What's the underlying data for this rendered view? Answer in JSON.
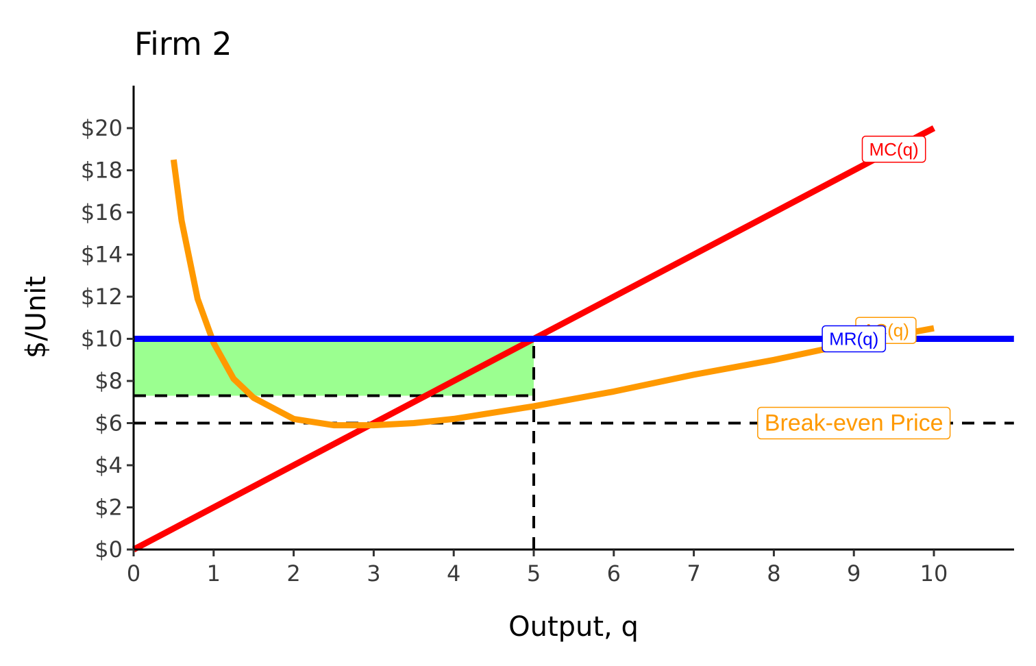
{
  "chart_data": {
    "type": "line",
    "title": "Firm 2",
    "xlabel": "Output, q",
    "ylabel": "$/Unit",
    "xlim": [
      0,
      11
    ],
    "ylim": [
      0,
      22
    ],
    "x_ticks": [
      0,
      1,
      2,
      3,
      4,
      5,
      6,
      7,
      8,
      9,
      10
    ],
    "x_tick_labels": [
      "0",
      "1",
      "2",
      "3",
      "4",
      "5",
      "6",
      "7",
      "8",
      "9",
      "10"
    ],
    "y_ticks": [
      0,
      2,
      4,
      6,
      8,
      10,
      12,
      14,
      16,
      18,
      20
    ],
    "y_tick_labels": [
      "$0",
      "$2",
      "$4",
      "$6",
      "$8",
      "$10",
      "$12",
      "$14",
      "$16",
      "$18",
      "$20"
    ],
    "grid": false,
    "series": [
      {
        "name": "MC(q)",
        "color": "#ff0000",
        "x": [
          0,
          10
        ],
        "y": [
          0,
          20
        ]
      },
      {
        "name": "AC(q)",
        "color": "#ff9900",
        "x": [
          0.5,
          0.6,
          0.8,
          1,
          1.25,
          1.5,
          2,
          2.5,
          3,
          3.5,
          4,
          5,
          6,
          7,
          8,
          9,
          10
        ],
        "y": [
          18.5,
          15.6,
          11.9,
          9.8,
          8.1,
          7.2,
          6.2,
          5.9,
          5.9,
          6.0,
          6.2,
          6.8,
          7.5,
          8.3,
          9.0,
          9.8,
          10.5
        ]
      },
      {
        "name": "MR(q)",
        "color": "#0000ff",
        "x": [
          0,
          11
        ],
        "y": [
          10,
          10
        ]
      }
    ],
    "annotations": [
      {
        "text": "MC(q)",
        "x": 9.5,
        "y": 19,
        "color": "#ff0000"
      },
      {
        "text": "AC(q)",
        "x": 9.4,
        "y": 10.4,
        "color": "#ff9900"
      },
      {
        "text": "MR(q)",
        "x": 9,
        "y": 10,
        "color": "#0000ff"
      },
      {
        "text": "Break-even Price",
        "x": 9,
        "y": 6,
        "color": "#ff9900"
      }
    ],
    "reference_lines": [
      {
        "kind": "horizontal",
        "y": 6,
        "x_from": 0,
        "x_to": 11,
        "style": "dashed"
      },
      {
        "kind": "horizontal",
        "y": 7.3,
        "x_from": 0,
        "x_to": 5,
        "style": "dashed"
      },
      {
        "kind": "vertical",
        "x": 5,
        "y_from": 0,
        "y_to": 10,
        "style": "dashed"
      }
    ],
    "shaded_region": {
      "x": [
        0,
        5
      ],
      "y": [
        7.3,
        10
      ],
      "color": "#66ff55"
    }
  }
}
